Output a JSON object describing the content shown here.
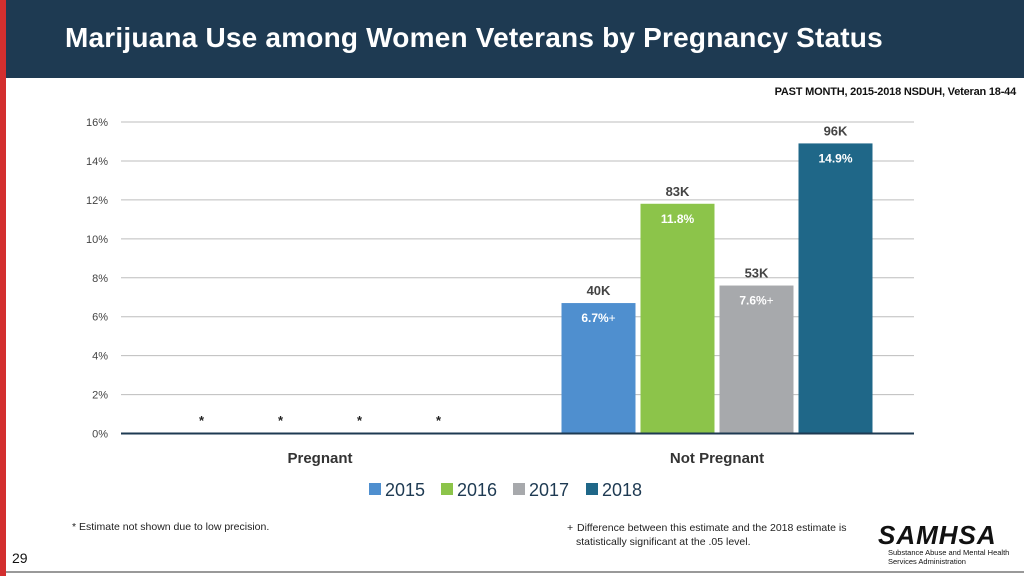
{
  "slide": {
    "title": "Marijuana Use among Women Veterans by Pregnancy Status",
    "subtitle": "PAST MONTH, 2015-2018 NSDUH, Veteran 18-44",
    "page_number": "29",
    "footnote_left": "* Estimate not shown due to low precision.",
    "footnote_right_symbol": "+",
    "footnote_right_line1": "Difference between this estimate and the 2018 estimate is",
    "footnote_right_line2": "statistically significant at the .05 level.",
    "logo_text": "SAMHSA",
    "logo_subtext": "Substance Abuse and Mental Health Services Administration"
  },
  "colors": {
    "header_bg": "#1e3a52",
    "accent_bar": "#d32f2f",
    "series": [
      "#4f8fcf",
      "#8cc44a",
      "#a7a9ac",
      "#1f6788"
    ]
  },
  "chart_data": {
    "type": "bar",
    "title": "Marijuana Use among Women Veterans by Pregnancy Status",
    "categories": [
      "Pregnant",
      "Not Pregnant"
    ],
    "series": [
      {
        "name": "2015",
        "values": [
          null,
          6.7
        ],
        "value_labels": [
          "*",
          "6.7%"
        ],
        "count_labels": [
          "",
          "40K"
        ],
        "significant": [
          false,
          true
        ]
      },
      {
        "name": "2016",
        "values": [
          null,
          11.8
        ],
        "value_labels": [
          "*",
          "11.8%"
        ],
        "count_labels": [
          "",
          "83K"
        ],
        "significant": [
          false,
          false
        ]
      },
      {
        "name": "2017",
        "values": [
          null,
          7.6
        ],
        "value_labels": [
          "*",
          "7.6%"
        ],
        "count_labels": [
          "",
          "53K"
        ],
        "significant": [
          false,
          true
        ]
      },
      {
        "name": "2018",
        "values": [
          null,
          14.9
        ],
        "value_labels": [
          "*",
          "14.9%"
        ],
        "count_labels": [
          "",
          "96K"
        ],
        "significant": [
          false,
          false
        ]
      }
    ],
    "ylim": [
      0,
      16
    ],
    "yticks": [
      0,
      2,
      4,
      6,
      8,
      10,
      12,
      14,
      16
    ],
    "ytick_suffix": "%",
    "significance_marker": "+",
    "grid": true,
    "legend_position": "bottom-center",
    "xlabel": "",
    "ylabel": ""
  }
}
